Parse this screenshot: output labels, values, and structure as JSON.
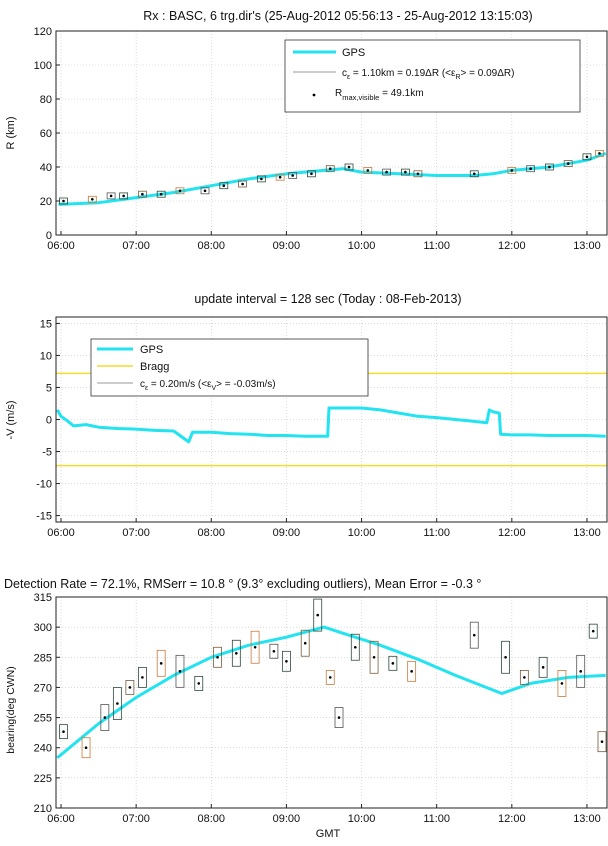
{
  "chart_data": [
    {
      "type": "line",
      "title": "Rx : BASC, 6 trg.dir's (25-Aug-2012 05:56:13 - 25-Aug-2012 13:15:03)",
      "xlabel": "",
      "ylabel": "R (km)",
      "xlim": [
        "05:56",
        "13:16"
      ],
      "ylim": [
        0,
        120
      ],
      "yticks": [
        0,
        20,
        40,
        60,
        80,
        100,
        120
      ],
      "xticks": [
        "06:00",
        "07:00",
        "08:00",
        "09:00",
        "10:00",
        "11:00",
        "12:00",
        "13:00"
      ],
      "grid": true,
      "legend_position": "top-right",
      "legend": [
        {
          "label": "GPS",
          "color": "#22e3f0",
          "style": "line"
        },
        {
          "label": "c_ε = 1.10km = 0.19ΔR (<ε_R> = 0.09ΔR)",
          "color": "#9a9a9a",
          "style": "line"
        },
        {
          "label": "R_max,visible = 49.1km",
          "color": "#000000",
          "style": "dot"
        }
      ],
      "series": [
        {
          "name": "GPS",
          "color": "#22e3f0",
          "x": [
            "05:58",
            "06:30",
            "07:00",
            "07:30",
            "08:00",
            "08:30",
            "09:00",
            "09:30",
            "09:45",
            "10:00",
            "10:30",
            "11:00",
            "11:30",
            "11:45",
            "12:00",
            "12:30",
            "13:00",
            "13:15"
          ],
          "y": [
            18,
            19,
            22,
            25,
            29,
            33,
            36,
            38,
            39,
            37,
            36,
            35,
            35,
            36,
            38,
            40,
            44,
            48
          ]
        }
      ],
      "detections": {
        "x": [
          "06:02",
          "06:25",
          "06:40",
          "06:50",
          "07:05",
          "07:20",
          "07:35",
          "07:55",
          "08:10",
          "08:25",
          "08:40",
          "08:55",
          "09:05",
          "09:20",
          "09:35",
          "09:50",
          "10:05",
          "10:20",
          "10:35",
          "10:45",
          "11:30",
          "12:00",
          "12:15",
          "12:30",
          "12:45",
          "13:00",
          "13:10"
        ],
        "y": [
          20,
          21,
          23,
          23,
          24,
          24,
          26,
          26,
          29,
          30,
          33,
          34,
          35,
          36,
          39,
          40,
          38,
          37,
          37,
          36,
          36,
          38,
          39,
          40,
          42,
          46,
          48
        ]
      }
    },
    {
      "type": "line",
      "title": "update interval = 128 sec (Today : 08-Feb-2013)",
      "xlabel": "",
      "ylabel": "-V (m/s)",
      "xlim": [
        "05:56",
        "13:16"
      ],
      "ylim": [
        -16,
        16
      ],
      "yticks": [
        -15,
        -10,
        -5,
        0,
        5,
        10,
        15
      ],
      "xticks": [
        "06:00",
        "07:00",
        "08:00",
        "09:00",
        "10:00",
        "11:00",
        "12:00",
        "13:00"
      ],
      "grid": true,
      "legend_position": "top-left",
      "legend": [
        {
          "label": "GPS",
          "color": "#22e3f0",
          "style": "line"
        },
        {
          "label": "Bragg",
          "color": "#f5dc2a",
          "style": "line"
        },
        {
          "label": "c_ε = 0.20m/s (<ε_V> = -0.03m/s)",
          "color": "#9a9a9a",
          "style": "line"
        }
      ],
      "series": [
        {
          "name": "GPS",
          "color": "#22e3f0",
          "x": [
            "05:57",
            "06:00",
            "06:05",
            "06:10",
            "06:20",
            "06:30",
            "06:45",
            "07:00",
            "07:15",
            "07:30",
            "07:42",
            "07:45",
            "08:00",
            "08:15",
            "08:30",
            "08:45",
            "09:00",
            "09:15",
            "09:33",
            "09:34",
            "09:45",
            "10:00",
            "10:15",
            "10:30",
            "10:45",
            "11:00",
            "11:15",
            "11:30",
            "11:40",
            "11:42",
            "11:45",
            "11:50",
            "11:51",
            "12:00",
            "12:15",
            "12:30",
            "12:45",
            "13:00",
            "13:15"
          ],
          "y": [
            1.5,
            0.5,
            -0.2,
            -1.0,
            -0.8,
            -1.2,
            -1.4,
            -1.5,
            -1.7,
            -1.8,
            -3.5,
            -2.0,
            -2.0,
            -2.2,
            -2.3,
            -2.5,
            -2.5,
            -2.6,
            -2.6,
            1.8,
            1.8,
            1.8,
            1.5,
            1.0,
            0.5,
            0.3,
            0.0,
            -0.3,
            -0.5,
            1.5,
            1.2,
            1.0,
            -2.3,
            -2.4,
            -2.4,
            -2.5,
            -2.5,
            -2.5,
            -2.6
          ]
        },
        {
          "name": "Bragg",
          "color": "#f5dc2a",
          "x": [
            "05:56",
            "13:16"
          ],
          "y": [
            7.2,
            7.2
          ]
        },
        {
          "name": "Bragg",
          "color": "#f5dc2a",
          "x": [
            "05:56",
            "13:16"
          ],
          "y": [
            -7.2,
            -7.2
          ]
        }
      ]
    },
    {
      "type": "line",
      "title": "Detection Rate = 72.1%, RMSerr = 10.8 ° (9.3° excluding outliers), Mean Error = -0.3 °",
      "xlabel": "GMT",
      "ylabel": "bearing(deg CWN)",
      "xlim": [
        "05:56",
        "13:16"
      ],
      "ylim": [
        210,
        315
      ],
      "yticks": [
        210,
        225,
        240,
        255,
        270,
        285,
        300,
        315
      ],
      "xticks": [
        "06:00",
        "07:00",
        "08:00",
        "09:00",
        "10:00",
        "11:00",
        "12:00",
        "13:00"
      ],
      "grid": true,
      "series": [
        {
          "name": "GPS",
          "color": "#22e3f0",
          "x": [
            "05:57",
            "06:30",
            "07:00",
            "07:30",
            "08:00",
            "08:30",
            "09:00",
            "09:30",
            "09:45",
            "10:15",
            "10:45",
            "11:15",
            "11:52",
            "12:15",
            "12:45",
            "13:15"
          ],
          "y": [
            235,
            252,
            265,
            276,
            285,
            291,
            295,
            300,
            297,
            291,
            284,
            276,
            267,
            272,
            275,
            276
          ]
        }
      ],
      "detections": {
        "x": [
          "06:02",
          "06:20",
          "06:35",
          "06:45",
          "06:55",
          "07:05",
          "07:20",
          "07:35",
          "07:50",
          "08:05",
          "08:20",
          "08:35",
          "08:50",
          "09:00",
          "09:15",
          "09:25",
          "09:35",
          "09:42",
          "09:55",
          "10:10",
          "10:25",
          "10:40",
          "11:30",
          "11:55",
          "12:10",
          "12:25",
          "12:40",
          "12:55",
          "13:05",
          "13:12"
        ],
        "y": [
          248,
          240,
          255,
          262,
          270,
          275,
          282,
          278,
          272,
          285,
          287,
          290,
          288,
          283,
          292,
          306,
          275,
          255,
          290,
          285,
          282,
          278,
          296,
          285,
          275,
          280,
          272,
          278,
          298,
          243
        ]
      }
    }
  ]
}
